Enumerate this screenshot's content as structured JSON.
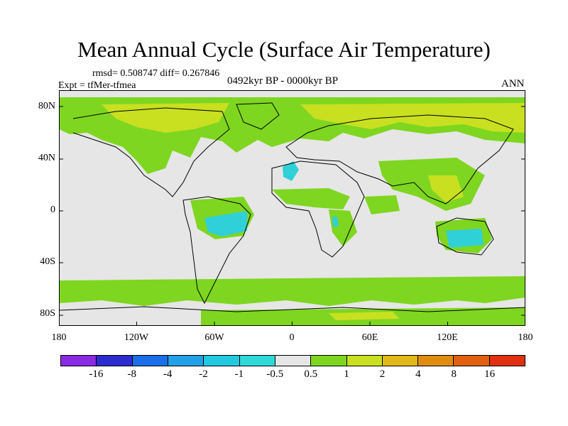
{
  "title": "Mean Annual Cycle (Surface Air Temperature)",
  "stats_line": "rmsd= 0.508747 diff= 0.267846",
  "experiment": "Expt = tfMer-tfmea",
  "period": "0492kyr BP - 0000kyr BP",
  "season": "ANN",
  "lat_labels": [
    "80N",
    "40N",
    "0",
    "40S",
    "80S"
  ],
  "lon_labels": [
    "180",
    "120W",
    "60W",
    "0",
    "60E",
    "120E",
    "180"
  ],
  "colorbar": {
    "labels": [
      "-16",
      "-8",
      "-4",
      "-2",
      "-1",
      "-0.5",
      "0.5",
      "1",
      "2",
      "4",
      "8",
      "16"
    ],
    "colors": [
      "#8a2be2",
      "#2c2ccf",
      "#1a6ee8",
      "#22a0e8",
      "#22c8e0",
      "#30d8d8",
      "#e6e6e6",
      "#7ed620",
      "#c8e020",
      "#e0b818",
      "#e08c10",
      "#e06010",
      "#e03010"
    ]
  },
  "map_colors": {
    "neutral": "#e6e6e6",
    "warm1": "#7ed620",
    "warm2": "#c8e020",
    "cool": "#30d0d8",
    "coast": "#000000"
  }
}
